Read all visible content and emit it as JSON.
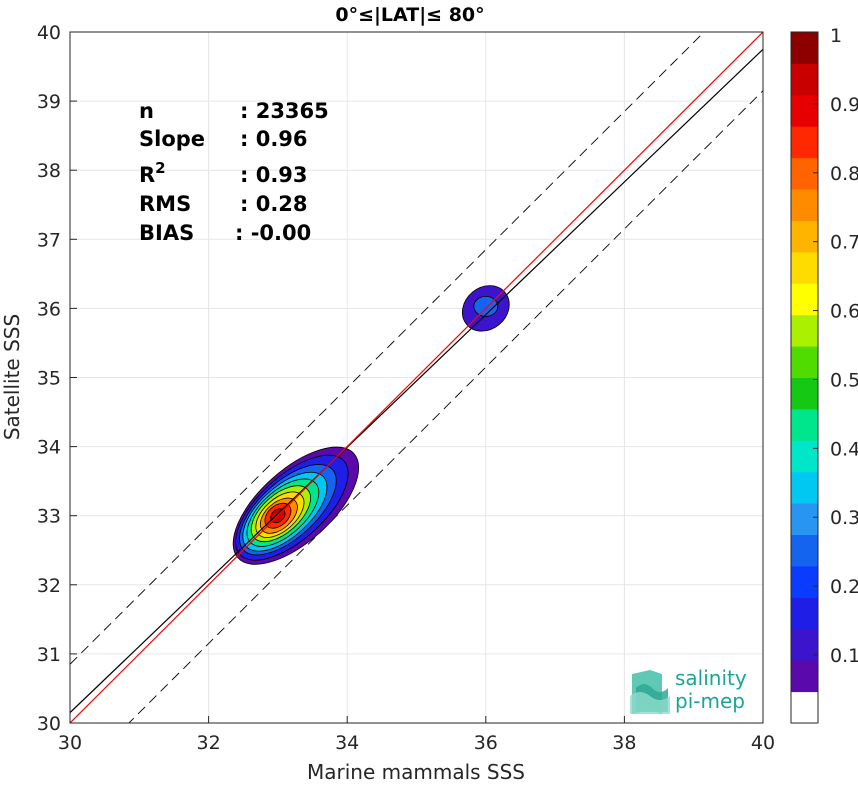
{
  "chart_data": {
    "type": "scatter",
    "title": "0°≤|LAT|≤ 80°",
    "xlabel": "Marine mammals SSS",
    "ylabel": "Satellite SSS",
    "xlim": [
      30,
      40
    ],
    "ylim": [
      30,
      40
    ],
    "xticks": [
      30,
      32,
      34,
      36,
      38,
      40
    ],
    "yticks": [
      30,
      31,
      32,
      33,
      34,
      35,
      36,
      37,
      38,
      39,
      40
    ],
    "grid": true,
    "stats": [
      {
        "label": "n",
        "value": ": 23365"
      },
      {
        "label": "Slope",
        "value": ": 0.96"
      },
      {
        "label": "R",
        "sup": "2",
        "value": ": 0.93"
      },
      {
        "label": "RMS",
        "value": ": 0.28"
      },
      {
        "label": "BIAS",
        "value": ": -0.00"
      }
    ],
    "lines": {
      "identity": {
        "x": [
          30,
          40
        ],
        "y": [
          30,
          40
        ],
        "color": "#ff0000"
      },
      "fit": {
        "x": [
          30,
          40
        ],
        "y": [
          30.15,
          39.75
        ],
        "color": "#000000"
      },
      "upper_bound": {
        "x": [
          30,
          40
        ],
        "y": [
          30.85,
          40.85
        ],
        "color": "#000000",
        "dash": true
      },
      "lower_bound": {
        "x": [
          30,
          40
        ],
        "y": [
          29.15,
          39.15
        ],
        "color": "#000000",
        "dash": true
      }
    },
    "density_clusters": [
      {
        "cx": 33.0,
        "cy": 33.0,
        "peak": 1.0,
        "levels": 10
      },
      {
        "cx": 36.0,
        "cy": 36.0,
        "peak": 0.25,
        "levels": 2
      }
    ],
    "colorbar": {
      "ticks": [
        "0.1",
        "0.2",
        "0.3",
        "0.4",
        "0.5",
        "0.6",
        "0.7",
        "0.8",
        "0.9",
        "1"
      ],
      "colors": [
        "#ffffff",
        "#5a0aaa",
        "#3c14cc",
        "#1e1ee6",
        "#0a3cff",
        "#1464f0",
        "#2896f0",
        "#00c8f0",
        "#00e6c8",
        "#00e68c",
        "#14c814",
        "#50dc00",
        "#aaf000",
        "#ffff00",
        "#ffdc00",
        "#ffb400",
        "#ff8c00",
        "#ff6400",
        "#ff2800",
        "#e60000",
        "#c80000",
        "#8c0000"
      ]
    }
  },
  "logo": {
    "line1": "salinity",
    "line2": "pi-mep"
  }
}
